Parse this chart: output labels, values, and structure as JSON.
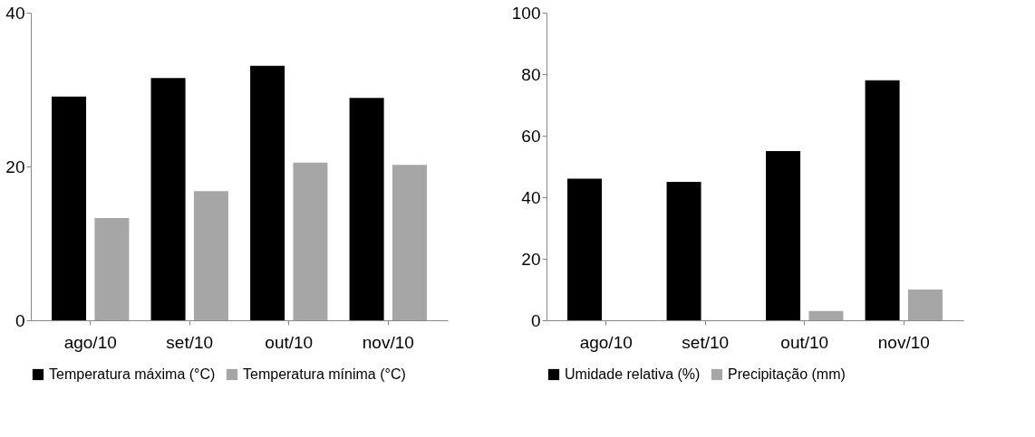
{
  "chart_data": [
    {
      "type": "bar",
      "categories": [
        "ago/10",
        "set/10",
        "out/10",
        "nov/10"
      ],
      "ylim": [
        0,
        40
      ],
      "yticks": [
        0,
        20,
        40
      ],
      "grid": false,
      "legend": "bottom",
      "series": [
        {
          "name": "Temperatura máxima (°C)",
          "color": "#000000",
          "values": [
            29.1,
            31.5,
            33.1,
            28.9
          ]
        },
        {
          "name": "Temperatura mínima (°C)",
          "color": "#a6a6a6",
          "values": [
            13.3,
            16.8,
            20.5,
            20.2
          ]
        }
      ]
    },
    {
      "type": "bar",
      "categories": [
        "ago/10",
        "set/10",
        "out/10",
        "nov/10"
      ],
      "ylim": [
        0,
        100
      ],
      "yticks": [
        0,
        20,
        40,
        60,
        80,
        100
      ],
      "grid": false,
      "legend": "bottom",
      "series": [
        {
          "name": "Umidade relativa (%)",
          "color": "#000000",
          "values": [
            46,
            45,
            55,
            78
          ]
        },
        {
          "name": "Precipitação (mm)",
          "color": "#a6a6a6",
          "values": [
            0,
            0,
            3,
            10
          ]
        }
      ]
    }
  ]
}
